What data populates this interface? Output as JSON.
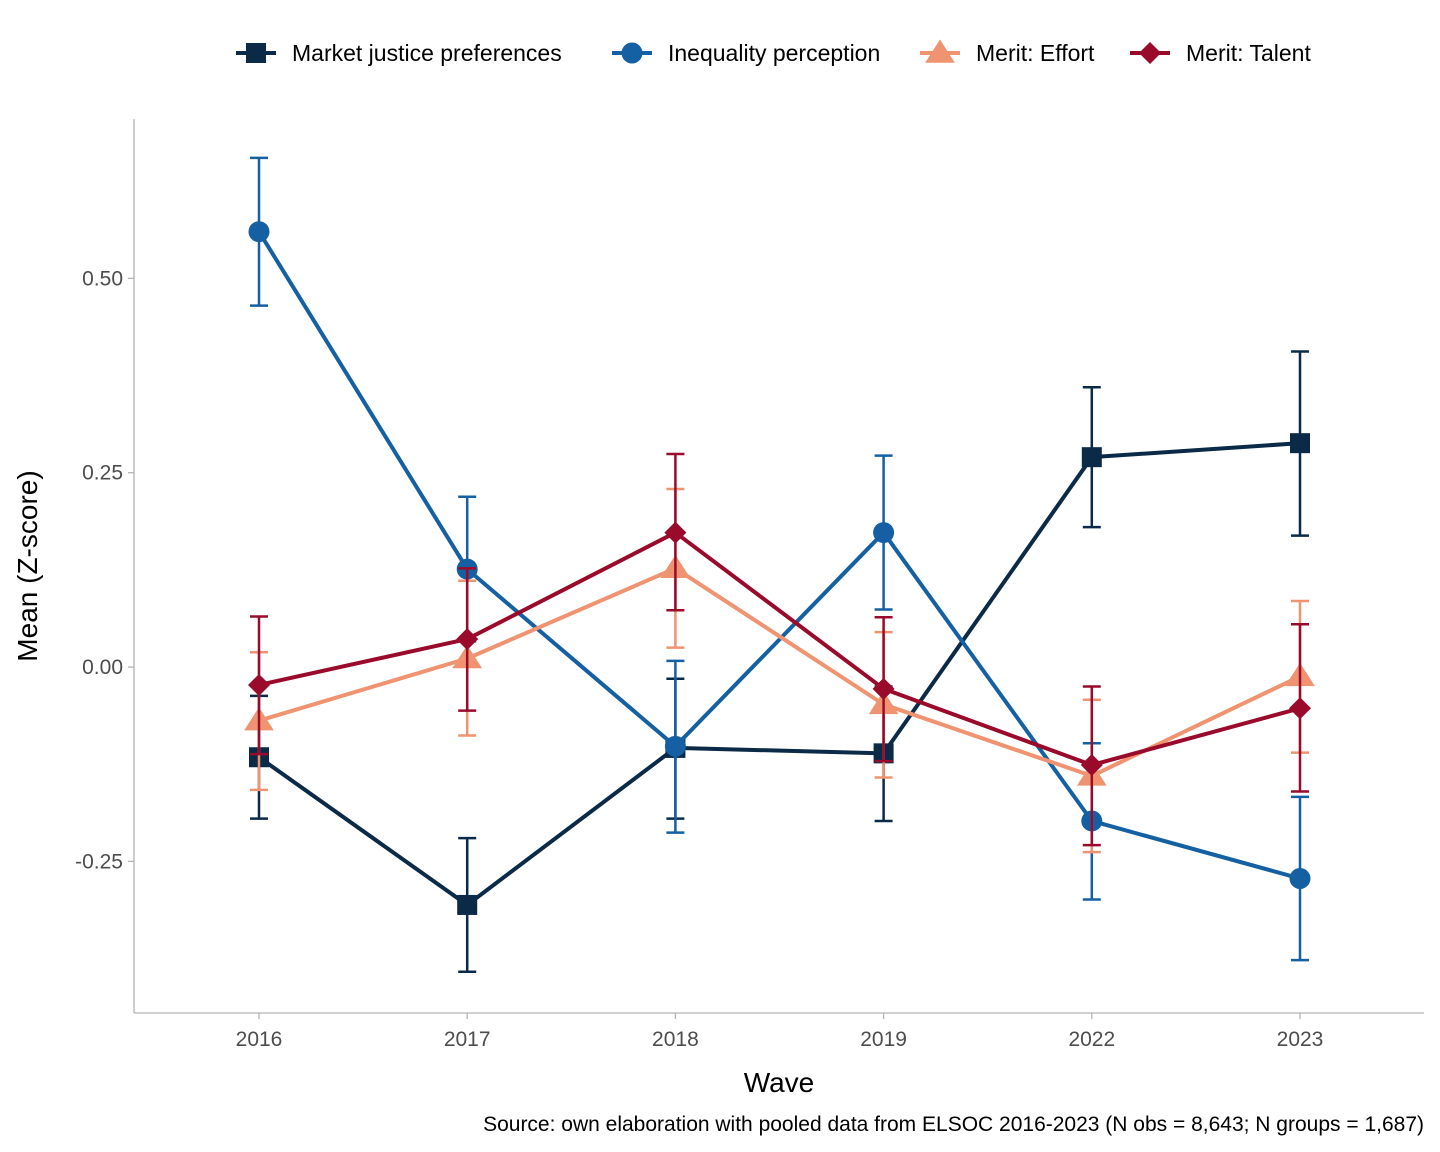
{
  "chart_data": {
    "type": "line",
    "title": "",
    "xlabel": "Wave",
    "ylabel": "Mean (Z-score)",
    "caption": "Source: own elaboration with pooled data from ELSOC 2016-2023 (N obs = 8,643; N groups = 1,687)",
    "categories": [
      "2016",
      "2017",
      "2018",
      "2019",
      "2022",
      "2023"
    ],
    "yticks": [
      {
        "value": 0.5,
        "label": "0.50"
      },
      {
        "value": 0.25,
        "label": "0.25"
      },
      {
        "value": 0.0,
        "label": "0.00"
      },
      {
        "value": -0.25,
        "label": "-0.25"
      }
    ],
    "ylim": [
      -0.445,
      0.705
    ],
    "grid": false,
    "legend_position": "top",
    "error_bars": true,
    "series": [
      {
        "name": "Market justice preferences",
        "color": "#0b2a48",
        "marker": "square",
        "values": [
          -0.116,
          -0.306,
          -0.104,
          -0.111,
          0.27,
          0.288
        ],
        "lower": [
          -0.195,
          -0.392,
          -0.195,
          -0.198,
          0.18,
          0.169
        ],
        "upper": [
          -0.037,
          -0.22,
          -0.015,
          -0.025,
          0.36,
          0.406
        ]
      },
      {
        "name": "Inequality perception",
        "color": "#1460a3",
        "marker": "circle",
        "values": [
          0.56,
          0.126,
          -0.102,
          0.173,
          -0.198,
          -0.272
        ],
        "lower": [
          0.465,
          0.033,
          -0.213,
          0.074,
          -0.299,
          -0.377
        ],
        "upper": [
          0.655,
          0.219,
          0.008,
          0.272,
          -0.098,
          -0.167
        ]
      },
      {
        "name": "Merit: Effort",
        "color": "#ef9370",
        "marker": "triangle",
        "values": [
          -0.069,
          0.011,
          0.127,
          -0.048,
          -0.14,
          -0.012
        ],
        "lower": [
          -0.158,
          -0.088,
          0.025,
          -0.142,
          -0.238,
          -0.11
        ],
        "upper": [
          0.019,
          0.111,
          0.229,
          0.045,
          -0.042,
          0.085
        ]
      },
      {
        "name": "Merit: Talent",
        "color": "#9a0a2a",
        "marker": "diamond",
        "values": [
          -0.023,
          0.036,
          0.173,
          -0.028,
          -0.126,
          -0.053
        ],
        "lower": [
          -0.112,
          -0.056,
          0.073,
          -0.121,
          -0.229,
          -0.16
        ],
        "upper": [
          0.065,
          0.127,
          0.274,
          0.064,
          -0.025,
          0.055
        ]
      }
    ]
  }
}
